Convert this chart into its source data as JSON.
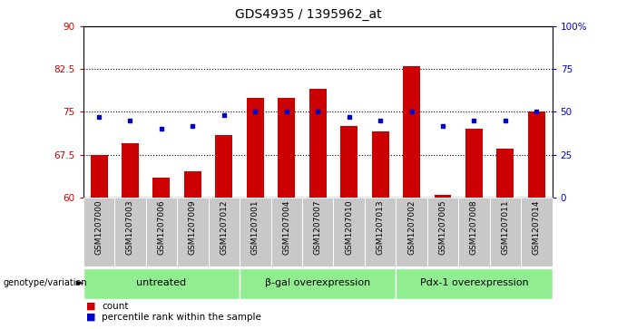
{
  "title": "GDS4935 / 1395962_at",
  "samples": [
    "GSM1207000",
    "GSM1207003",
    "GSM1207006",
    "GSM1207009",
    "GSM1207012",
    "GSM1207001",
    "GSM1207004",
    "GSM1207007",
    "GSM1207010",
    "GSM1207013",
    "GSM1207002",
    "GSM1207005",
    "GSM1207008",
    "GSM1207011",
    "GSM1207014"
  ],
  "counts": [
    67.5,
    69.5,
    63.5,
    64.5,
    71.0,
    77.5,
    77.5,
    79.0,
    72.5,
    71.5,
    83.0,
    60.5,
    72.0,
    68.5,
    75.0
  ],
  "percentiles": [
    47,
    45,
    40,
    42,
    48,
    50,
    50,
    50,
    47,
    45,
    50,
    42,
    45,
    45,
    50
  ],
  "groups": [
    {
      "label": "untreated",
      "start": 0,
      "end": 5
    },
    {
      "label": "β-gal overexpression",
      "start": 5,
      "end": 10
    },
    {
      "label": "Pdx-1 overexpression",
      "start": 10,
      "end": 15
    }
  ],
  "bar_color": "#cc0000",
  "dot_color": "#0000cc",
  "group_color": "#90ee90",
  "sample_bg_color": "#c8c8c8",
  "ylim_left": [
    60,
    90
  ],
  "ylim_right": [
    0,
    100
  ],
  "yticks_left": [
    60,
    67.5,
    75,
    82.5,
    90
  ],
  "yticks_right": [
    0,
    25,
    50,
    75,
    100
  ],
  "ytick_labels_left": [
    "60",
    "67.5",
    "75",
    "82.5",
    "90"
  ],
  "ytick_labels_right": [
    "0",
    "25",
    "50",
    "75",
    "100%"
  ],
  "hlines": [
    67.5,
    75,
    82.5
  ],
  "bar_width": 0.55,
  "legend_count_label": "count",
  "legend_pct_label": "percentile rank within the sample",
  "genotype_label": "genotype/variation",
  "title_fontsize": 10,
  "axis_fontsize": 7.5,
  "tick_label_fontsize": 6.5,
  "group_label_fontsize": 8
}
